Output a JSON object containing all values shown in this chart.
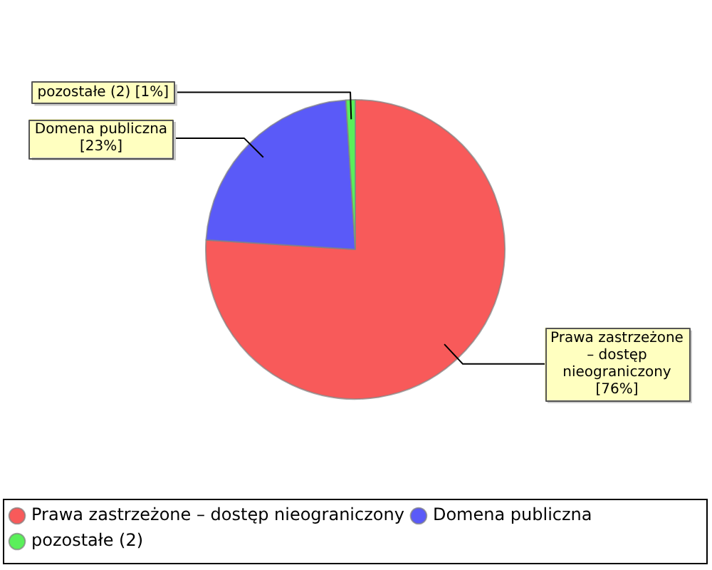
{
  "chart_data": {
    "type": "pie",
    "categories": [
      "Prawa zastrzeżone – dostęp nieograniczony",
      "Domena publiczna",
      "pozostałe (2)"
    ],
    "values": [
      76,
      23,
      1
    ],
    "colors": [
      "#f85a5a",
      "#5a5af8",
      "#5af05a"
    ],
    "value_labels": [
      "[76%]",
      "[23%]",
      "[1%]"
    ],
    "legend": "bottom"
  }
}
